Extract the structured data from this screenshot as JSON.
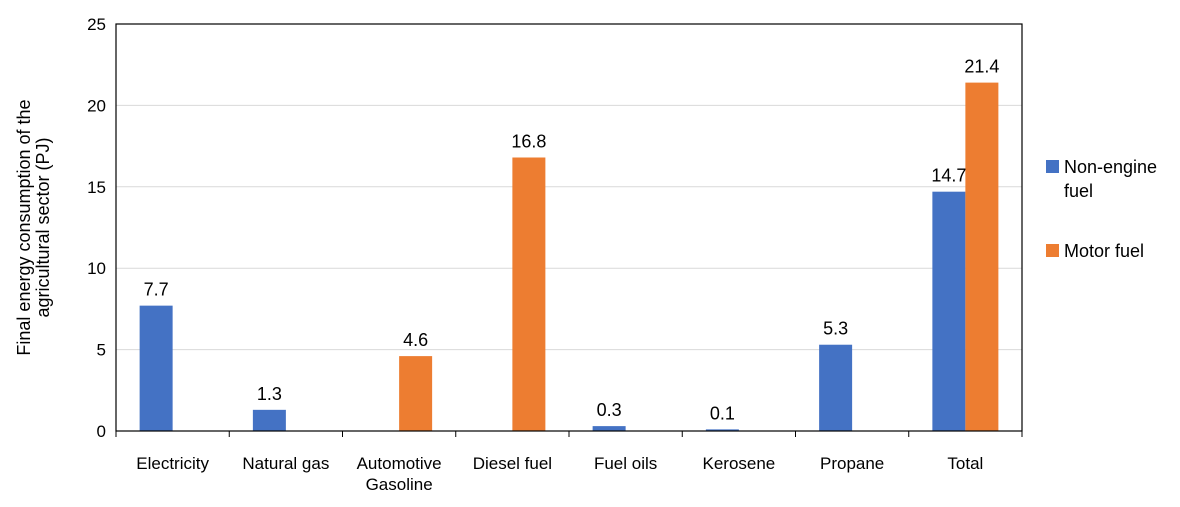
{
  "chart_data": {
    "type": "bar",
    "title": "",
    "xlabel": "",
    "ylabel_lines": [
      "Final energy consumption of the",
      "agricultural sector (PJ)"
    ],
    "categories": [
      [
        "Electricity"
      ],
      [
        "Natural gas"
      ],
      [
        "Automotive",
        "Gasoline"
      ],
      [
        "Diesel fuel"
      ],
      [
        "Fuel oils"
      ],
      [
        "Kerosene"
      ],
      [
        "Propane"
      ],
      [
        "Total"
      ]
    ],
    "series": [
      {
        "name_lines": [
          "Non-engine",
          "fuel"
        ],
        "color": "#4472C4",
        "values": [
          7.7,
          1.3,
          null,
          null,
          0.3,
          0.1,
          5.3,
          14.7
        ],
        "labels": [
          "7.7",
          "1.3",
          "",
          "",
          "0.3",
          "0.1",
          "5.3",
          "14.7"
        ]
      },
      {
        "name_lines": [
          "Motor fuel"
        ],
        "color": "#ED7D31",
        "values": [
          null,
          null,
          4.6,
          16.8,
          null,
          null,
          null,
          21.4
        ],
        "labels": [
          "",
          "",
          "4.6",
          "16.8",
          "",
          "",
          "",
          "21.4"
        ]
      }
    ],
    "ylim": [
      0,
      25
    ],
    "yticks": [
      0,
      5,
      10,
      15,
      20,
      25
    ],
    "ytick_labels": [
      "0",
      "5",
      "10",
      "15",
      "20",
      "25"
    ],
    "grid": true,
    "legend_position": "right"
  }
}
